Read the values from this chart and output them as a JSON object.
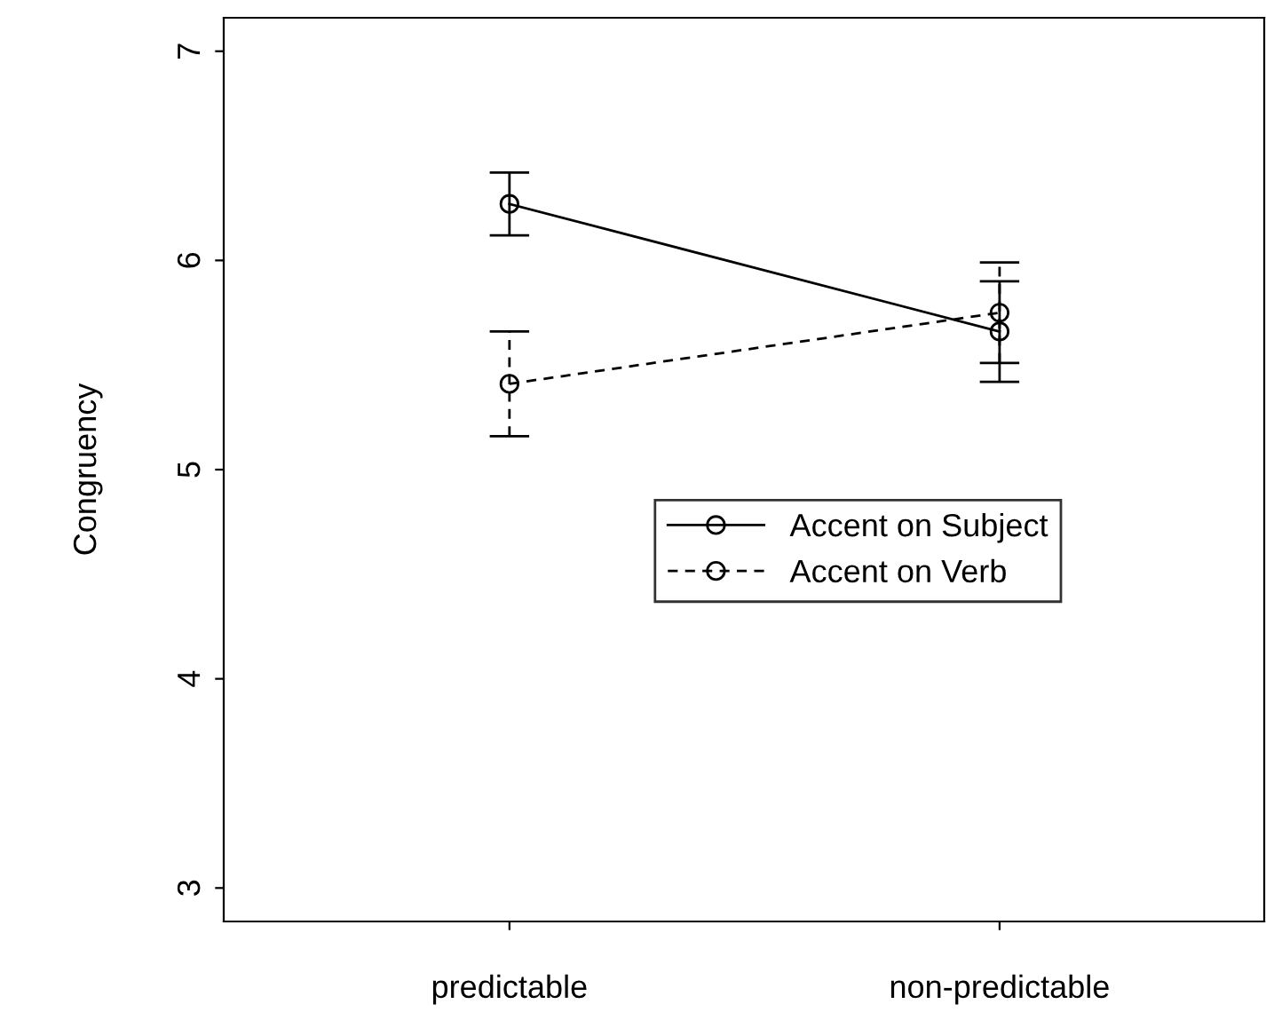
{
  "chart_data": {
    "type": "line",
    "ylabel": "Congruency",
    "categories": [
      "predictable",
      "non-predictable"
    ],
    "series": [
      {
        "name": "Accent on Subject",
        "color": "#000000",
        "line_style": "solid",
        "values": [
          6.27,
          5.66
        ],
        "errors": [
          0.15,
          0.24
        ]
      },
      {
        "name": "Accent on Verb",
        "color": "#000000",
        "line_style": "dashed",
        "values": [
          5.41,
          5.75
        ],
        "errors": [
          0.25,
          0.24
        ]
      }
    ],
    "ylim": [
      2.84,
      7.16
    ],
    "yticks": [
      3,
      4,
      5,
      6,
      7
    ],
    "marker": "circle",
    "grid": false,
    "legend": "right"
  }
}
